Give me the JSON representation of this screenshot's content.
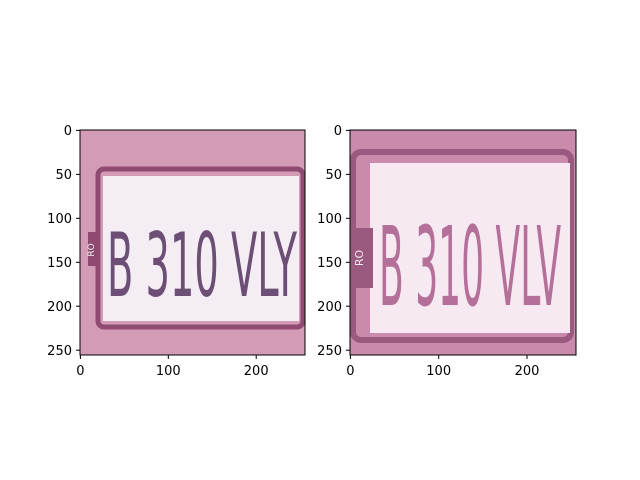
{
  "panels": [
    {
      "name": "left-image",
      "plate_text": "B 310 VLY",
      "country_code": "RO",
      "xlim": [
        0,
        256
      ],
      "ylim": [
        256,
        0
      ],
      "xticks": [
        "0",
        "100",
        "200"
      ],
      "yticks": [
        "0",
        "50",
        "100",
        "150",
        "200",
        "250"
      ],
      "colors": {
        "background": "#d49bb7",
        "plate": "#f4eef4",
        "border": "#8e4a70",
        "text": "#6d4f76"
      }
    },
    {
      "name": "right-image",
      "plate_text": "B 310 VLV",
      "country_code": "RO",
      "xlim": [
        0,
        256
      ],
      "ylim": [
        256,
        0
      ],
      "xticks": [
        "0",
        "100",
        "200"
      ],
      "yticks": [
        "0",
        "50",
        "100",
        "150",
        "200",
        "250"
      ],
      "colors": {
        "background": "#c98aac",
        "plate": "#f6e9f2",
        "border": "#9a5a7f",
        "text": "#b57099"
      }
    }
  ]
}
